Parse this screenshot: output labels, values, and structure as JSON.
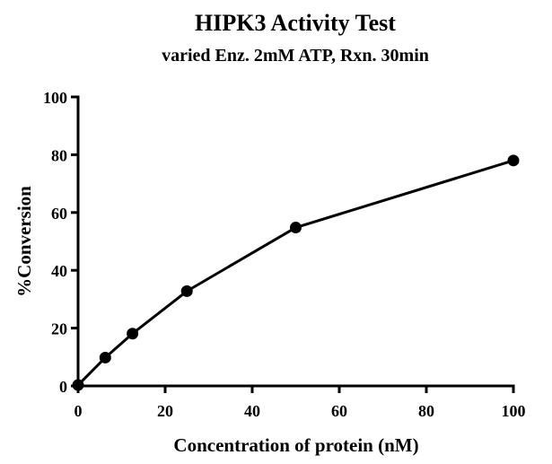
{
  "chart_data": {
    "type": "line",
    "title": "HIPK3 Activity Test",
    "subtitle": "varied Enz. 2mM ATP, Rxn. 30min",
    "xlabel": "Concentration of protein (nM)",
    "ylabel": "%Conversion",
    "xlim": [
      0,
      100
    ],
    "ylim": [
      0,
      100
    ],
    "xticks": [
      "0",
      "20",
      "40",
      "60",
      "80",
      "100"
    ],
    "yticks": [
      "0",
      "20",
      "40",
      "60",
      "80",
      "100"
    ],
    "grid": false,
    "series": [
      {
        "x": [
          0,
          6.25,
          12.5,
          25,
          50,
          100
        ],
        "y": [
          0.3,
          9.8,
          18.1,
          32.8,
          54.8,
          78.0
        ],
        "color": "#000000",
        "marker": "circle"
      }
    ]
  }
}
